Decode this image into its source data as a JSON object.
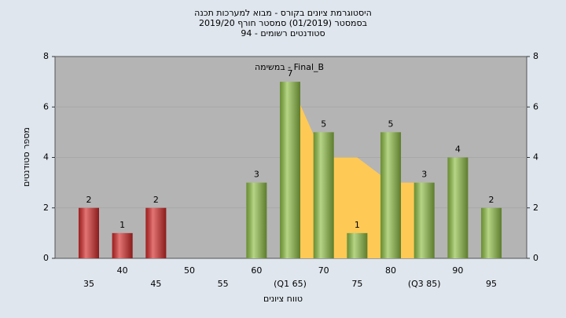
{
  "chart_data": {
    "type": "bar",
    "title": [
      "היסטוגרמת ציונים בקורס - מבוא למערכות תכנה",
      "בסמסטר  (01/2019)  סמסטר חורף 2019/20",
      "סטודנטים רשומים - 94"
    ],
    "xlabel": "טווח ציונים",
    "ylabel": "מספר סטודנטים",
    "annotation": "Final_B - במשימה",
    "categories": [
      "35",
      "40",
      "45",
      "50",
      "55",
      "60",
      "(Q1 65)",
      "70",
      "75",
      "80",
      "(Q3 85)",
      "90",
      "95"
    ],
    "values": [
      2,
      1,
      2,
      0,
      0,
      3,
      7,
      5,
      1,
      5,
      3,
      4,
      2
    ],
    "colors": [
      "#d42a2a",
      "#d42a2a",
      "#d42a2a",
      "#d42a2a",
      "#d42a2a",
      "#8fbf45",
      "#8fbf45",
      "#8fbf45",
      "#8fbf45",
      "#8fbf45",
      "#8fbf45",
      "#8fbf45",
      "#8fbf45"
    ],
    "area": {
      "color": "#ffc955",
      "x_index": [
        6,
        7,
        8,
        9,
        10
      ],
      "values": [
        7,
        4,
        4,
        3,
        3
      ]
    },
    "ylim": [
      0,
      8
    ],
    "yticks": [
      0,
      2,
      4,
      6,
      8
    ],
    "grid": true
  }
}
